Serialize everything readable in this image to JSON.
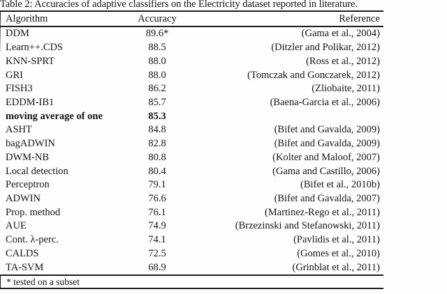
{
  "caption": "Table 2: Accuracies of adaptive classifiers on the Electricity dataset reported in literature.",
  "table": {
    "columns": [
      "Algorithm",
      "Accuracy",
      "Reference"
    ],
    "rows": [
      {
        "algorithm": "DDM",
        "accuracy": "89.6*",
        "reference": "(Gama et al., 2004)",
        "bold": false
      },
      {
        "algorithm": "Learn++.CDS",
        "accuracy": "88.5",
        "reference": "(Ditzler and Polikar, 2012)",
        "bold": false
      },
      {
        "algorithm": "KNN-SPRT",
        "accuracy": "88.0",
        "reference": "(Ross et al., 2012)",
        "bold": false
      },
      {
        "algorithm": "GRI",
        "accuracy": "88.0",
        "reference": "(Tomczak and Gonczarek, 2012)",
        "bold": false
      },
      {
        "algorithm": "FISH3",
        "accuracy": "86.2",
        "reference": "(Zliobaite, 2011)",
        "bold": false
      },
      {
        "algorithm": "EDDM-IB1",
        "accuracy": "85.7",
        "reference": "(Baena-Garcia et al., 2006)",
        "bold": false
      },
      {
        "algorithm": "moving average of one",
        "accuracy": "85.3",
        "reference": "",
        "bold": true
      },
      {
        "algorithm": "ASHT",
        "accuracy": "84.8",
        "reference": "(Bifet and Gavalda, 2009)",
        "bold": false
      },
      {
        "algorithm": "bagADWIN",
        "accuracy": "82.8",
        "reference": "(Bifet and Gavalda, 2009)",
        "bold": false
      },
      {
        "algorithm": "DWM-NB",
        "accuracy": "80.8",
        "reference": "(Kolter and Maloof, 2007)",
        "bold": false
      },
      {
        "algorithm": "Local detection",
        "accuracy": "80.4",
        "reference": "(Gama and Castillo, 2006)",
        "bold": false
      },
      {
        "algorithm": "Perceptron",
        "accuracy": "79.1",
        "reference": "(Bifet et al., 2010b)",
        "bold": false
      },
      {
        "algorithm": "ADWIN",
        "accuracy": "76.6",
        "reference": "(Bifet and Gavalda, 2007)",
        "bold": false
      },
      {
        "algorithm": "Prop. method",
        "accuracy": "76.1",
        "reference": "(Martinez-Rego et al., 2011)",
        "bold": false
      },
      {
        "algorithm": "AUE",
        "accuracy": "74.9",
        "reference": "(Brzezinski and Stefanowski, 2011)",
        "bold": false
      },
      {
        "algorithm": "Cont. λ-perc.",
        "accuracy": "74.1",
        "reference": "(Pavlidis et al., 2011)",
        "bold": false
      },
      {
        "algorithm": "CALDS",
        "accuracy": "72.5",
        "reference": "(Gomes et al., 2010)",
        "bold": false
      },
      {
        "algorithm": "TA-SVM",
        "accuracy": "68.9",
        "reference": "(Grinblat et al., 2011)",
        "bold": false
      }
    ],
    "footnote": "* tested on a subset"
  },
  "colors": {
    "ink": "#1c1c1c",
    "paper": "#fefefe"
  }
}
